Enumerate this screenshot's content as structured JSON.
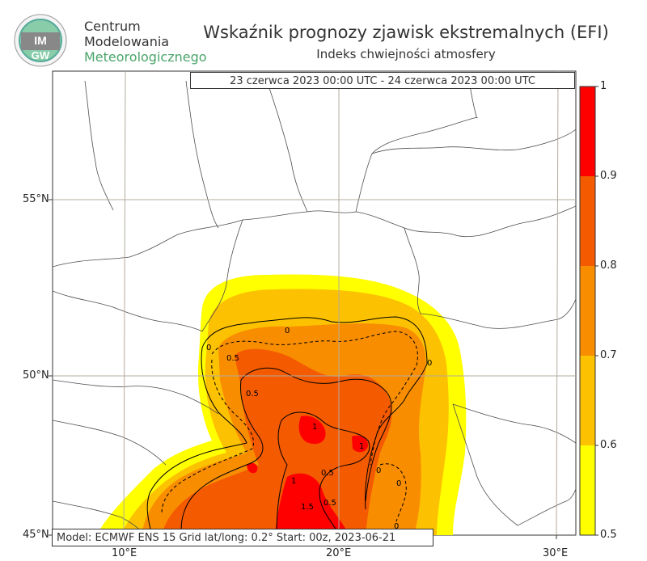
{
  "header": {
    "org_line1": "Centrum",
    "org_line2": "Modelowania",
    "org_line3": "Meteorologicznego",
    "title": "Wskaźnik prognozy zjawisk ekstremalnych (EFI)",
    "subtitle": "Indeks chwiejności atmosfery"
  },
  "logo": {
    "text_top": "IM",
    "text_bottom": "GW"
  },
  "date_range": "23 czerwca 2023 00:00 UTC - 24 czerwca 2023 00:00 UTC",
  "footer": "Model: ECMWF  ENS 15  Grid lat/long: 0.2°  Start: 00z, 2023-06-21",
  "axes": {
    "lat_labels": [
      "55°N",
      "50°N",
      "45°N"
    ],
    "lon_labels": [
      "10°E",
      "20°E",
      "30°E"
    ]
  },
  "colorbar": {
    "ticks": [
      "1",
      "0.9",
      "0.8",
      "0.7",
      "0.6",
      "0.5"
    ],
    "colors": [
      "#fe0000",
      "#f45a00",
      "#f98d00",
      "#fcc100",
      "#ffff00"
    ]
  },
  "contour_labels": [
    "0",
    "0",
    "0.5",
    "0.5",
    "1",
    "1",
    "0.5",
    "1",
    "0.5",
    "1.5",
    "0",
    "0",
    "0",
    "0"
  ],
  "colors": {
    "yellow": "#ffff00",
    "gold": "#fcc100",
    "orange": "#f98d00",
    "dark_orange": "#f45a00",
    "red": "#fe0000",
    "grid": "#b4ab9e",
    "border": "#4d4d4d"
  }
}
